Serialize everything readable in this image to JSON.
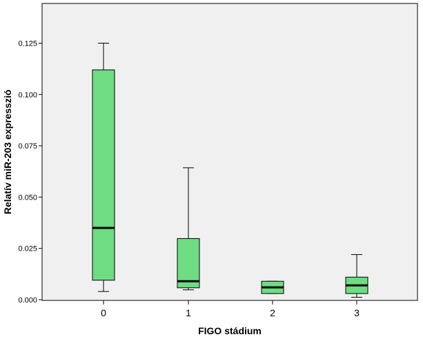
{
  "chart_data": {
    "type": "box",
    "xlabel": "FIGO stádium",
    "ylabel": "Relatív miR-203 expresszió",
    "ylim": [
      0,
      0.14
    ],
    "yticks": [
      "0.000",
      "0.025",
      "0.050",
      "0.075",
      "0.100",
      "0.125"
    ],
    "categories": [
      "0",
      "1",
      "2",
      "3"
    ],
    "boxes": [
      {
        "category": "0",
        "whisker_low": 0.004,
        "q1": 0.0095,
        "median": 0.035,
        "q3": 0.112,
        "whisker_high": 0.125
      },
      {
        "category": "1",
        "whisker_low": 0.0048,
        "q1": 0.0058,
        "median": 0.009,
        "q3": 0.0298,
        "whisker_high": 0.0643
      },
      {
        "category": "2",
        "whisker_low": 0.003,
        "q1": 0.003,
        "median": 0.006,
        "q3": 0.009,
        "whisker_high": 0.009
      },
      {
        "category": "3",
        "whisker_low": 0.0012,
        "q1": 0.003,
        "median": 0.007,
        "q3": 0.011,
        "whisker_high": 0.022
      }
    ],
    "colors": {
      "box_fill": "#6ddc82",
      "plot_bg": "#f0f0f0",
      "stroke": "#000000"
    },
    "grid": false,
    "legend": "none"
  }
}
